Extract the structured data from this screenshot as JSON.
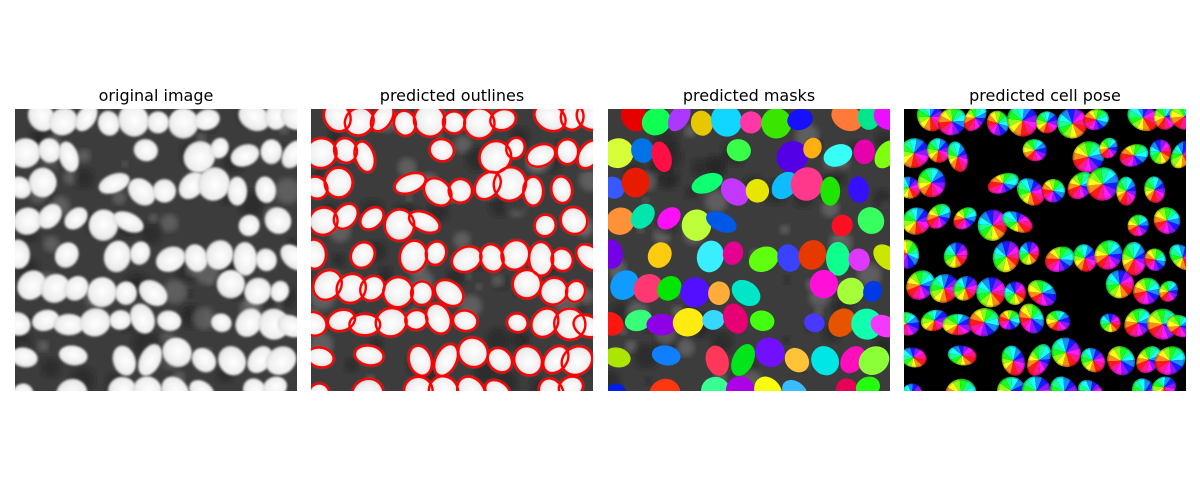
{
  "panels": [
    {
      "title": "original image",
      "view": "grayscale"
    },
    {
      "title": "predicted outlines",
      "view": "outlines",
      "outline_color": "#ff0000"
    },
    {
      "title": "predicted masks",
      "view": "masks"
    },
    {
      "title": "predicted cell pose",
      "view": "flows"
    }
  ]
}
